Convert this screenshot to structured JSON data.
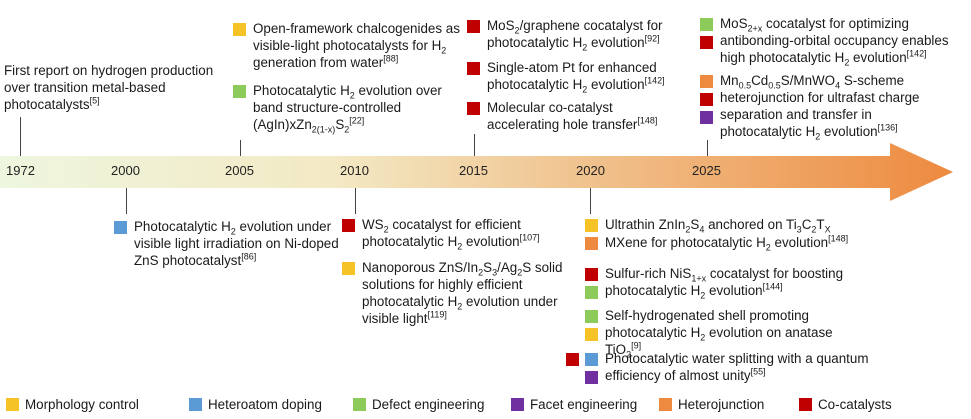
{
  "colors": {
    "morphology": "#F5C326",
    "heteroatom": "#5B9BD5",
    "defect": "#8CCB5A",
    "facet": "#7030A0",
    "heterojunction": "#ED8A3F",
    "cocatalyst": "#C00000",
    "arrow_start": "#EEF6DF",
    "arrow_end": "#ED8A3F"
  },
  "years": [
    "1972",
    "2000",
    "2005",
    "2010",
    "2015",
    "2020",
    "2025"
  ],
  "events": {
    "e1972": {
      "pre": "First report on hydrogen production over transition metal-based photocatalysts",
      "ref": "[5]"
    },
    "e2000": {
      "pre": "Photocatalytic H",
      "sub": "2",
      "mid": " evolution under visible light irradiation on Ni-doped ZnS photocatalyst",
      "ref": "[86]"
    },
    "e2005a": {
      "pre": "Open-framework chalcogenides as visible-light photocatalysts for H",
      "sub": "2",
      "mid": " generation from water",
      "ref": "[88]"
    },
    "e2005b": {
      "pre": "Photocatalytic H",
      "sub": "2",
      "mid": " evolution over band structure-controlled (AgIn)xZn",
      "sub2": "2(1-x)",
      "mid2": "S",
      "sub3": "2",
      "ref": "[22]"
    },
    "e2010a": {
      "pre": "WS",
      "sub": "2",
      "mid": " cocatalyst for efficient photocatalytic H",
      "sub2": "2",
      "mid2": " evolution",
      "ref": "[107]"
    },
    "e2010b": {
      "pre": "Nanoporous ZnS/In",
      "sub": "2",
      "mid": "S",
      "sub2": "3",
      "mid2": "/Ag",
      "sub3": "2",
      "mid3": "S solid solutions for highly efficient photocatalytic H",
      "sub4": "2",
      "mid4": " evolution under visible light",
      "ref": "[119]"
    },
    "e2015a": {
      "pre": "MoS",
      "sub": "2",
      "mid": "/graphene cocatalyst for photocatalytic H",
      "sub2": "2",
      "mid2": " evolution",
      "ref": "[92]"
    },
    "e2015b": {
      "pre": "Single-atom Pt for enhanced photocatalytic H",
      "sub": "2",
      "mid": " evolution",
      "ref": "[142]"
    },
    "e2015c": {
      "pre": "Molecular co-catalyst accelerating hole transfer",
      "ref": "[148]"
    },
    "e2020a": {
      "pre": "Ultrathin ZnIn",
      "sub": "2",
      "mid": "S",
      "sub2": "4",
      "mid2": " anchored on Ti",
      "sub3": "3",
      "mid3": "C",
      "sub4": "2",
      "mid4": "T",
      "sub5": "X"
    },
    "e2020a2": {
      "pre": "MXene for photocatalytic H",
      "sub": "2",
      "mid": " evolution",
      "ref": "[148]"
    },
    "e2020b": {
      "pre": "Sulfur-rich NiS",
      "sub": "1+x",
      "mid": " cocatalyst for boosting photocatalytic H",
      "sub2": "2",
      "mid2": " evolution",
      "ref": "[144]"
    },
    "e2020c": {
      "pre": "Self-hydrogenated shell promoting photocatalytic H",
      "sub": "2",
      "mid": " evolution on anatase TiO",
      "sub2": "2",
      "ref": "[9]"
    },
    "e2020d": {
      "pre": "Photocatalytic water splitting with a quantum efficiency of almost unity",
      "ref": "[55]"
    },
    "e2025a": {
      "pre": "MoS",
      "sub": "2+x",
      "mid": " cocatalyst for optimizing antibonding-orbital occupancy enables high photocatalytic H",
      "sub2": "2",
      "mid2": " evolution",
      "ref": "[142]"
    },
    "e2025b": {
      "pre": "Mn",
      "sub": "0.5",
      "mid": "Cd",
      "sub2": "0.5",
      "mid2": "S/MnWO",
      "sub3": "4",
      "mid3": " S-scheme heterojunction for ultrafast charge separation and transfer in photocatalytic H",
      "sub4": "2",
      "mid4": " evolution",
      "ref": "[136]"
    }
  },
  "legend": [
    {
      "label": "Morphology control"
    },
    {
      "label": "Heteroatom doping"
    },
    {
      "label": "Defect engineering"
    },
    {
      "label": "Facet engineering"
    },
    {
      "label": "Heterojunction"
    },
    {
      "label": "Co-catalysts"
    }
  ]
}
